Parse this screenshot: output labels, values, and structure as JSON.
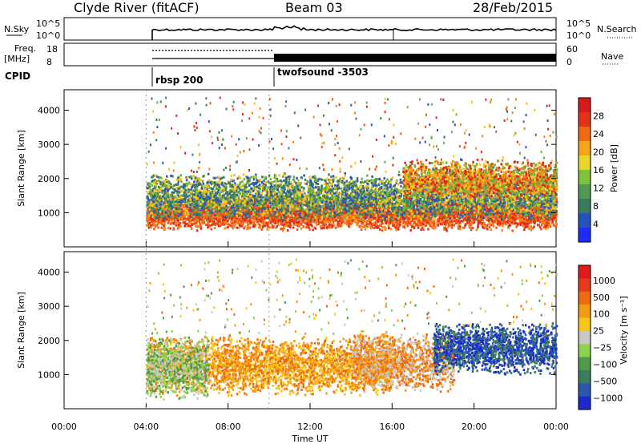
{
  "header": {
    "station": "Clyde River (fitACF)",
    "beam": "Beam 03",
    "date": "28/Feb/2015"
  },
  "status_panels": {
    "nsky_label": "N.Sky",
    "nsky_ticks": [
      "10^5",
      "10^0"
    ],
    "nsearch_label": "N.Search",
    "nsearch_ticks": [
      "10^5",
      "10^0"
    ],
    "freq_label_line1": "Freq.",
    "freq_label_line2": "[MHz]",
    "freq_ticks": [
      "18",
      "8"
    ],
    "nave_label": "Nave",
    "nave_ticks": [
      "60",
      "0"
    ],
    "cpid_label": "CPID",
    "modes": [
      {
        "name": "rbsp 200",
        "start_hour": 4
      },
      {
        "name": "twofsound -3503",
        "start_hour": 10
      }
    ]
  },
  "chart_data": [
    {
      "type": "heatmap",
      "name": "power",
      "ylabel": "Slant Range [km]",
      "ylim": [
        0,
        4600
      ],
      "yticks": [
        "1000",
        "2000",
        "3000",
        "4000"
      ],
      "xlim_hours": [
        0,
        24
      ],
      "colorbar_label": "Power [dB]",
      "colorbar_ticks": [
        "4",
        "8",
        "12",
        "16",
        "20",
        "24",
        "28"
      ],
      "colorbar_colors": [
        "#1e2bff",
        "#2553b8",
        "#3c7a5a",
        "#4f9a50",
        "#7fc33a",
        "#e8d72a",
        "#f7a21b",
        "#f06a12",
        "#e6321a",
        "#d81c1c"
      ],
      "scatter_bands": [
        {
          "start": 4.0,
          "end": 24.0,
          "center": 1000,
          "width": 500,
          "colors": [
            "#e02a1a",
            "#f05414",
            "#f6861a"
          ]
        },
        {
          "start": 4.0,
          "end": 24.0,
          "center": 1500,
          "width": 700,
          "colors": [
            "#f5c21e",
            "#6bb03e",
            "#3f7f5c",
            "#2f58b0"
          ]
        },
        {
          "start": 16.5,
          "end": 24.0,
          "center": 2000,
          "width": 600,
          "colors": [
            "#f6861a",
            "#f5c21e",
            "#6bb03e",
            "#e02a1a"
          ]
        }
      ]
    },
    {
      "type": "heatmap",
      "name": "velocity",
      "ylabel": "Slant Range [km]",
      "ylim": [
        0,
        4600
      ],
      "yticks": [
        "1000",
        "2000",
        "3000",
        "4000"
      ],
      "xlim_hours": [
        0,
        24
      ],
      "xticks": [
        "00:00",
        "04:00",
        "08:00",
        "12:00",
        "16:00",
        "20:00",
        "00:00"
      ],
      "xlabel": "Time UT",
      "colorbar_label": "Velocity [m s⁻¹]",
      "colorbar_ticks": [
        "1000",
        "500",
        "100",
        "25",
        "−25",
        "−100",
        "−500",
        "−1000"
      ],
      "colorbar_colors": [
        "#1b2ad0",
        "#2c57b0",
        "#3d7c5c",
        "#4f9b4a",
        "#8ed24a",
        "#c8c8c8",
        "#f7c617",
        "#f59b13",
        "#f06a12",
        "#e63a1a",
        "#e01a1a"
      ],
      "scatter_bands": [
        {
          "start": 4.0,
          "end": 16.0,
          "center": 1300,
          "width": 900,
          "colors": [
            "#f59b13",
            "#f06a12",
            "#f7c617"
          ]
        },
        {
          "start": 4.0,
          "end": 7.0,
          "center": 1200,
          "width": 1000,
          "colors": [
            "#4f9b4a",
            "#8ed24a",
            "#c8c8c8"
          ]
        },
        {
          "start": 14.0,
          "end": 19.0,
          "center": 1400,
          "width": 900,
          "colors": [
            "#c8c8c8",
            "#f59b13",
            "#f06a12"
          ]
        },
        {
          "start": 18.0,
          "end": 24.0,
          "center": 1800,
          "width": 800,
          "colors": [
            "#1b2ad0",
            "#2c57b0",
            "#3d7c5c"
          ]
        }
      ]
    }
  ]
}
